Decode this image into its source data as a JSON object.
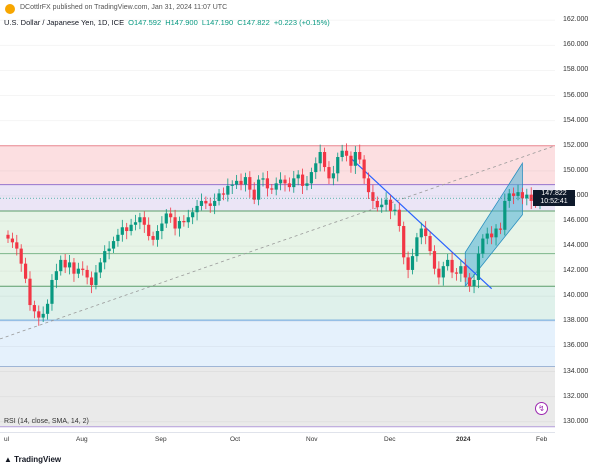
{
  "header": {
    "publisher": "DCottlrFX published on TradingView.com, Jan 31, 2024 11:07 UTC"
  },
  "info": {
    "title": "U.S. Dollar / Japanese Yen, 1D, ICE",
    "open": "O147.592",
    "high": "H147.900",
    "low": "L147.190",
    "close": "C147.822",
    "change": "+0.223 (+0.15%)"
  },
  "price_axis": {
    "ticks": [
      "162.000",
      "160.000",
      "158.000",
      "156.000",
      "154.000",
      "152.000",
      "150.000",
      "148.000",
      "146.000",
      "144.000",
      "142.000",
      "140.000",
      "138.000",
      "136.000",
      "134.000",
      "132.000",
      "130.000"
    ]
  },
  "price_tag": {
    "price": "147.822",
    "time": "10:52:41"
  },
  "time_axis": {
    "labels": [
      "ul",
      "Aug",
      "Sep",
      "Oct",
      "Nov",
      "Dec",
      "2024",
      "Feb"
    ]
  },
  "indicator": {
    "label": "RSI (14, close, SMA, 14, 2)"
  },
  "footer": {
    "logo_text": "TradingView"
  },
  "colors": {
    "up": "#089981",
    "down": "#f23645",
    "trendline": "#2962ff",
    "channel": "#4fb0d6"
  },
  "chart_data": {
    "type": "candlestick",
    "symbol": "USDJPY",
    "timeframe": "1D",
    "ylim": [
      129.5,
      162.5
    ],
    "fib_levels": [
      152.0,
      148.9,
      146.8,
      143.4,
      140.8,
      138.1,
      134.4,
      129.6
    ],
    "closes": [
      144.6,
      144.3,
      143.8,
      142.6,
      141.4,
      139.3,
      138.8,
      138.3,
      138.6,
      139.4,
      141.3,
      142.0,
      142.9,
      142.3,
      142.7,
      141.8,
      142.2,
      142.1,
      141.5,
      140.9,
      141.9,
      142.7,
      143.6,
      143.8,
      144.4,
      144.9,
      145.5,
      145.2,
      145.7,
      145.9,
      146.3,
      145.7,
      144.8,
      144.5,
      145.2,
      145.8,
      146.6,
      146.3,
      145.4,
      146.0,
      145.9,
      146.3,
      146.7,
      147.2,
      147.6,
      147.4,
      147.2,
      147.6,
      148.2,
      148.1,
      148.8,
      148.9,
      149.2,
      148.9,
      149.5,
      148.5,
      147.7,
      149.3,
      149.4,
      148.6,
      148.5,
      149.0,
      149.3,
      149.0,
      148.7,
      149.4,
      149.7,
      148.8,
      149.0,
      149.9,
      150.6,
      151.5,
      150.3,
      149.4,
      149.8,
      151.1,
      151.6,
      151.2,
      150.4,
      151.5,
      150.9,
      149.4,
      148.3,
      147.6,
      147.1,
      147.3,
      147.7,
      146.8,
      146.9,
      145.6,
      143.1,
      142.1,
      143.2,
      144.7,
      145.4,
      144.8,
      143.6,
      142.2,
      141.5,
      142.4,
      142.9,
      141.9,
      141.8,
      142.4,
      141.5,
      140.8,
      141.3,
      143.4,
      144.6,
      145.0,
      144.7,
      145.4,
      145.3,
      147.6,
      148.2,
      148.0,
      148.3,
      147.8,
      148.1,
      147.6,
      147.4,
      147.8
    ]
  }
}
